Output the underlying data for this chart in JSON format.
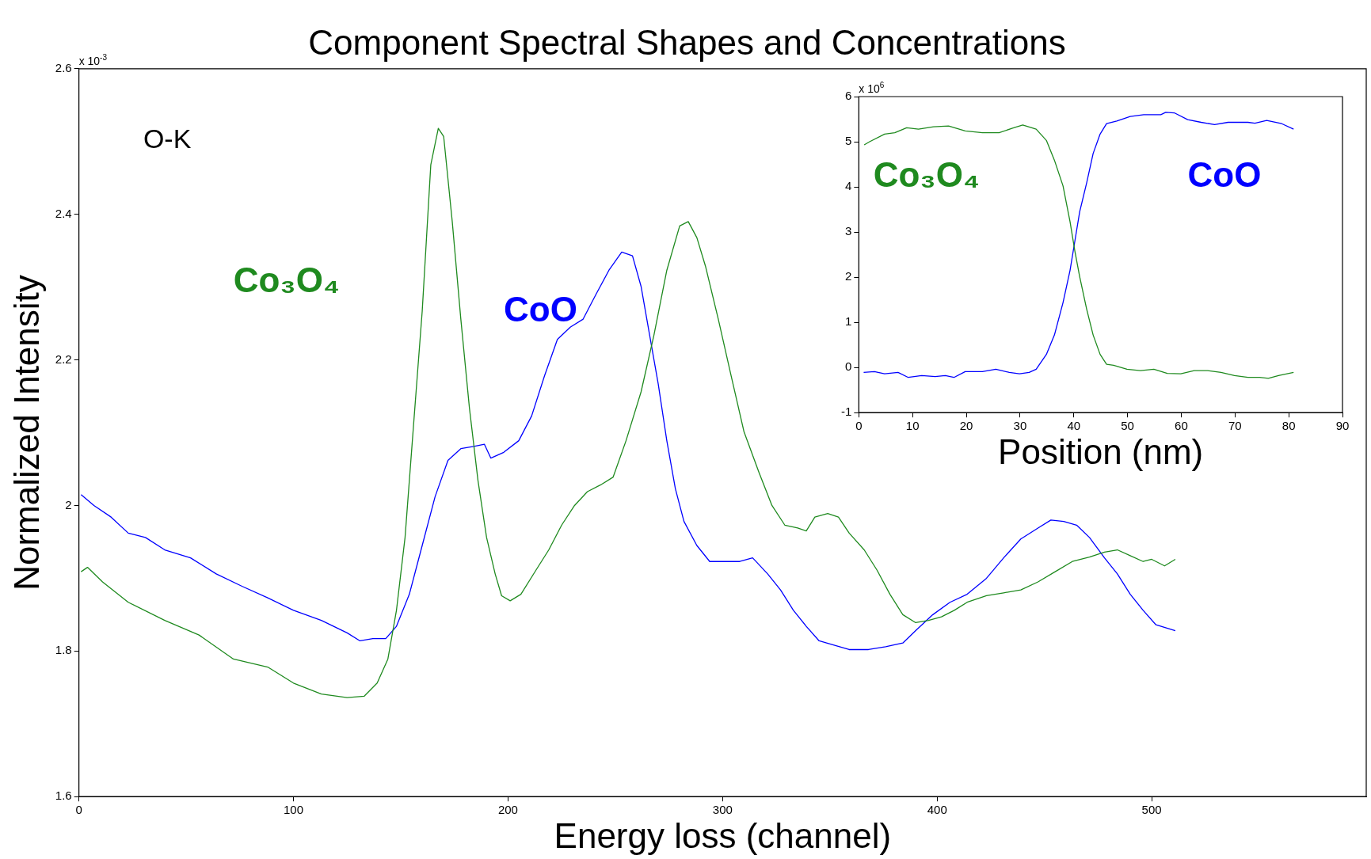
{
  "chart_data": [
    {
      "type": "line",
      "title": "Component Spectral Shapes and Concentrations",
      "xlabel": "Energy loss (channel)",
      "ylabel": "Normalized Intensity",
      "annotations": [
        "O-K",
        "x 10$^{-3}$"
      ],
      "xlim": [
        0,
        600
      ],
      "xticks": [
        0,
        100,
        200,
        300,
        400,
        500
      ],
      "ylim": [
        1.6,
        2.6
      ],
      "yticks": [
        1.6,
        1.8,
        2,
        2.2,
        2.4,
        2.6
      ],
      "grid": false,
      "legend": false,
      "series": [
        {
          "name": "Co₃O₄",
          "color": "#1f8a1f",
          "x": [
            1,
            4,
            11,
            23,
            40,
            56,
            72,
            88,
            100,
            113,
            125,
            133,
            139,
            144,
            148,
            152,
            156,
            160,
            164,
            167.5,
            170,
            174,
            178,
            182,
            186,
            190,
            194,
            197,
            201,
            206,
            213,
            219,
            225,
            231,
            237,
            243,
            249,
            255,
            262,
            268,
            274,
            280,
            284,
            288,
            292,
            298,
            304,
            310,
            317,
            323,
            329,
            335,
            339,
            343,
            349,
            354,
            359,
            366,
            372,
            378,
            384,
            390,
            396,
            402,
            408,
            414,
            423,
            431,
            439,
            447,
            455,
            463,
            471,
            478,
            484,
            490,
            496,
            500,
            506,
            511
          ],
          "values": [
            1.909,
            1.915,
            1.895,
            1.867,
            1.842,
            1.822,
            1.789,
            1.778,
            1.756,
            1.741,
            1.736,
            1.738,
            1.756,
            1.789,
            1.856,
            1.956,
            2.112,
            2.267,
            2.468,
            2.518,
            2.507,
            2.39,
            2.256,
            2.134,
            2.034,
            1.956,
            1.906,
            1.876,
            1.869,
            1.878,
            1.911,
            1.939,
            1.973,
            2.0,
            2.019,
            2.028,
            2.039,
            2.089,
            2.156,
            2.234,
            2.323,
            2.384,
            2.39,
            2.368,
            2.329,
            2.256,
            2.178,
            2.101,
            2.045,
            2.0,
            1.973,
            1.969,
            1.965,
            1.984,
            1.989,
            1.984,
            1.962,
            1.939,
            1.911,
            1.878,
            1.85,
            1.839,
            1.842,
            1.847,
            1.856,
            1.867,
            1.876,
            1.88,
            1.884,
            1.895,
            1.909,
            1.923,
            1.929,
            1.936,
            1.939,
            1.931,
            1.923,
            1.926,
            1.917,
            1.926
          ]
        },
        {
          "name": "CoO",
          "color": "#0000ff",
          "x": [
            1,
            7,
            15,
            23,
            31,
            40,
            52,
            64,
            76,
            88,
            100,
            113,
            125,
            131,
            137,
            143,
            148,
            154,
            160,
            166,
            172,
            178,
            184,
            189,
            192,
            198,
            205,
            211,
            217,
            223,
            229,
            235,
            241,
            247,
            253,
            258,
            262,
            266,
            270,
            274,
            278,
            282,
            288,
            294,
            300,
            308,
            314,
            321,
            327,
            333,
            339,
            345,
            351,
            359,
            368,
            376,
            384,
            390,
            398,
            406,
            414,
            423,
            431,
            439,
            447,
            453,
            459,
            465,
            471,
            478,
            484,
            490,
            496,
            502,
            511
          ],
          "values": [
            2.015,
            2.0,
            1.984,
            1.962,
            1.956,
            1.939,
            1.928,
            1.906,
            1.889,
            1.873,
            1.856,
            1.842,
            1.825,
            1.814,
            1.817,
            1.817,
            1.834,
            1.878,
            1.945,
            2.012,
            2.062,
            2.078,
            2.081,
            2.084,
            2.065,
            2.073,
            2.089,
            2.123,
            2.178,
            2.228,
            2.245,
            2.256,
            2.29,
            2.323,
            2.348,
            2.343,
            2.301,
            2.234,
            2.167,
            2.089,
            2.023,
            1.978,
            1.945,
            1.923,
            1.923,
            1.923,
            1.928,
            1.906,
            1.884,
            1.856,
            1.834,
            1.814,
            1.809,
            1.802,
            1.802,
            1.806,
            1.811,
            1.828,
            1.85,
            1.867,
            1.878,
            1.9,
            1.928,
            1.954,
            1.969,
            1.98,
            1.978,
            1.973,
            1.956,
            1.928,
            1.906,
            1.878,
            1.856,
            1.836,
            1.828
          ]
        }
      ]
    },
    {
      "type": "line",
      "xlabel": "Position (nm)",
      "annotations": [
        "x 10$^{6}$"
      ],
      "xlim": [
        0,
        90
      ],
      "xticks": [
        0,
        10,
        20,
        30,
        40,
        50,
        60,
        70,
        80,
        90
      ],
      "ylim": [
        -1,
        6
      ],
      "yticks": [
        -1,
        0,
        1,
        2,
        3,
        4,
        5,
        6
      ],
      "grid": false,
      "legend": false,
      "series": [
        {
          "name": "Co₃O₄",
          "color": "#1f8a1f",
          "x": [
            1,
            2,
            4.8,
            6.7,
            8.9,
            11.1,
            13.9,
            16.7,
            19.8,
            23,
            26.1,
            28.6,
            30.5,
            33,
            34.9,
            36.4,
            38,
            39.3,
            40.2,
            41.1,
            42.4,
            43.6,
            44.9,
            46.1,
            47.4,
            49.9,
            52.4,
            54.9,
            57.4,
            59.9,
            62.4,
            64.9,
            67.4,
            69.9,
            72.4,
            74.6,
            76.2,
            78.1,
            80.9
          ],
          "values": [
            4.93,
            5.0,
            5.17,
            5.2,
            5.31,
            5.28,
            5.33,
            5.35,
            5.24,
            5.2,
            5.2,
            5.3,
            5.37,
            5.28,
            5.03,
            4.59,
            4.02,
            3.23,
            2.58,
            2.01,
            1.29,
            0.72,
            0.29,
            0.07,
            0.05,
            -0.04,
            -0.07,
            -0.04,
            -0.13,
            -0.14,
            -0.07,
            -0.07,
            -0.11,
            -0.18,
            -0.22,
            -0.22,
            -0.24,
            -0.18,
            -0.11
          ]
        },
        {
          "name": "CoO",
          "color": "#0000ff",
          "x": [
            0.9,
            2.9,
            4.8,
            7.3,
            9.2,
            11.7,
            14.2,
            16.1,
            17.7,
            19.8,
            23,
            25.5,
            28,
            29.9,
            31.7,
            33,
            34.9,
            36.4,
            38,
            39.3,
            40.2,
            41.1,
            42.4,
            43.6,
            44.9,
            46.1,
            48,
            50.5,
            53,
            56.2,
            57.1,
            58.7,
            61.2,
            63.7,
            66.2,
            68.7,
            72.4,
            73.7,
            75.9,
            78.7,
            80.9
          ],
          "values": [
            -0.11,
            -0.09,
            -0.14,
            -0.11,
            -0.22,
            -0.18,
            -0.2,
            -0.18,
            -0.22,
            -0.09,
            -0.09,
            -0.04,
            -0.11,
            -0.14,
            -0.11,
            -0.04,
            0.29,
            0.72,
            1.44,
            2.15,
            2.8,
            3.45,
            4.09,
            4.74,
            5.17,
            5.4,
            5.46,
            5.56,
            5.6,
            5.6,
            5.65,
            5.64,
            5.49,
            5.43,
            5.38,
            5.43,
            5.43,
            5.41,
            5.47,
            5.4,
            5.28
          ]
        }
      ]
    }
  ]
}
